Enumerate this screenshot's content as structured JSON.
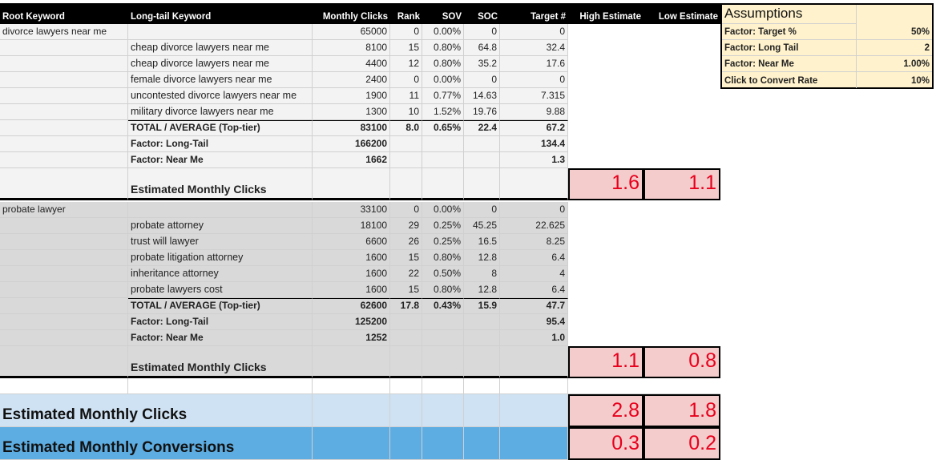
{
  "header": [
    "Root Keyword",
    "Long-tail Keyword",
    "Monthly Clicks",
    "Rank",
    "SOV",
    "SOC",
    "Target #",
    "High Estimate",
    "Low Estimate"
  ],
  "groups": [
    {
      "rows": [
        {
          "root": "divorce lawyers near me",
          "clicks": "65000",
          "rank": "0",
          "sov": "0.00%",
          "soc": "0",
          "target": "0"
        },
        {
          "keyword": "cheap divorce lawyers near me",
          "clicks": "8100",
          "rank": "15",
          "sov": "0.80%",
          "soc": "64.8",
          "target": "32.4"
        },
        {
          "keyword": "cheap divorce lawyers near me",
          "clicks": "4400",
          "rank": "12",
          "sov": "0.80%",
          "soc": "35.2",
          "target": "17.6"
        },
        {
          "keyword": "female divorce lawyers near me",
          "clicks": "2400",
          "rank": "0",
          "sov": "0.00%",
          "soc": "0",
          "target": "0"
        },
        {
          "keyword": "uncontested divorce lawyers near me",
          "clicks": "1900",
          "rank": "11",
          "sov": "0.77%",
          "soc": "14.63",
          "target": "7.315"
        },
        {
          "keyword": "military divorce lawyers near me",
          "clicks": "1300",
          "rank": "10",
          "sov": "1.52%",
          "soc": "19.76",
          "target": "9.88"
        }
      ],
      "total": {
        "keyword": "TOTAL / AVERAGE (Top-tier)",
        "clicks": "83100",
        "rank": "8.0",
        "sov": "0.65%",
        "soc": "22.4",
        "target": "67.2"
      },
      "long_tail": {
        "keyword": "Factor: Long-Tail",
        "clicks": "166200",
        "target": "134.4"
      },
      "near_me": {
        "keyword": "Factor: Near Me",
        "clicks": "1662",
        "target": "1.3"
      },
      "estimate": {
        "keyword": "Estimated Monthly Clicks",
        "high": "1.6",
        "low": "1.1"
      }
    },
    {
      "rows": [
        {
          "root": "probate lawyer",
          "clicks": "33100",
          "rank": "0",
          "sov": "0.00%",
          "soc": "0",
          "target": "0"
        },
        {
          "keyword": "probate attorney",
          "clicks": "18100",
          "rank": "29",
          "sov": "0.25%",
          "soc": "45.25",
          "target": "22.625"
        },
        {
          "keyword": "trust will lawyer",
          "clicks": "6600",
          "rank": "26",
          "sov": "0.25%",
          "soc": "16.5",
          "target": "8.25"
        },
        {
          "keyword": "probate litigation attorney",
          "clicks": "1600",
          "rank": "15",
          "sov": "0.80%",
          "soc": "12.8",
          "target": "6.4"
        },
        {
          "keyword": "inheritance attorney",
          "clicks": "1600",
          "rank": "22",
          "sov": "0.50%",
          "soc": "8",
          "target": "4"
        },
        {
          "keyword": "probate lawyers cost",
          "clicks": "1600",
          "rank": "15",
          "sov": "0.80%",
          "soc": "12.8",
          "target": "6.4"
        }
      ],
      "total": {
        "keyword": "TOTAL / AVERAGE (Top-tier)",
        "clicks": "62600",
        "rank": "17.8",
        "sov": "0.43%",
        "soc": "15.9",
        "target": "47.7"
      },
      "long_tail": {
        "keyword": "Factor: Long-Tail",
        "clicks": "125200",
        "target": "95.4"
      },
      "near_me": {
        "keyword": "Factor: Near Me",
        "clicks": "1252",
        "target": "1.0"
      },
      "estimate": {
        "keyword": "Estimated Monthly Clicks",
        "high": "1.1",
        "low": "0.8"
      }
    }
  ],
  "summary": {
    "clicks": {
      "label": "Estimated Monthly Clicks",
      "high": "2.8",
      "low": "1.8"
    },
    "conversions": {
      "label": "Estimated Monthly Conversions",
      "high": "0.3",
      "low": "0.2"
    }
  },
  "assumptions": {
    "title": "Assumptions",
    "rows": [
      [
        "Factor: Target %",
        "50%"
      ],
      [
        "Factor: Long Tail",
        "2"
      ],
      [
        "Factor: Near Me",
        "1.00%"
      ],
      [
        "Click to Convert Rate",
        "10%"
      ]
    ]
  }
}
